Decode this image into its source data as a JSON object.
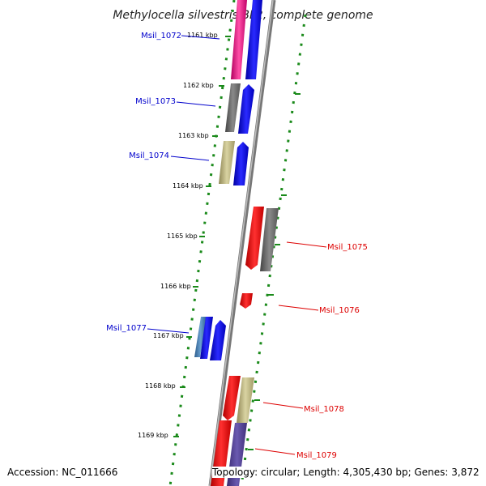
{
  "title": "Methylocella silvestris BL2, complete genome",
  "footer": {
    "accession": "Accession: NC_011666",
    "summary": "Topology: circular; Length: 4,305,430 bp; Genes: 3,872"
  },
  "colors": {
    "forward_label": "#0000cc",
    "reverse_label": "#dd0000",
    "tick": "#1a8a1a",
    "axis": "#777777"
  },
  "ticks": [
    "1161 kbp",
    "1162 kbp",
    "1163 kbp",
    "1164 kbp",
    "1165 kbp",
    "1166 kbp",
    "1167 kbp",
    "1168 kbp",
    "1169 kbp"
  ],
  "gene_labels": [
    {
      "id": "Msil_1072",
      "strand": "forward"
    },
    {
      "id": "Msil_1073",
      "strand": "forward"
    },
    {
      "id": "Msil_1074",
      "strand": "forward"
    },
    {
      "id": "Msil_1075",
      "strand": "reverse"
    },
    {
      "id": "Msil_1076",
      "strand": "reverse"
    },
    {
      "id": "Msil_1077",
      "strand": "forward"
    },
    {
      "id": "Msil_1078",
      "strand": "reverse"
    },
    {
      "id": "Msil_1079",
      "strand": "reverse"
    }
  ]
}
